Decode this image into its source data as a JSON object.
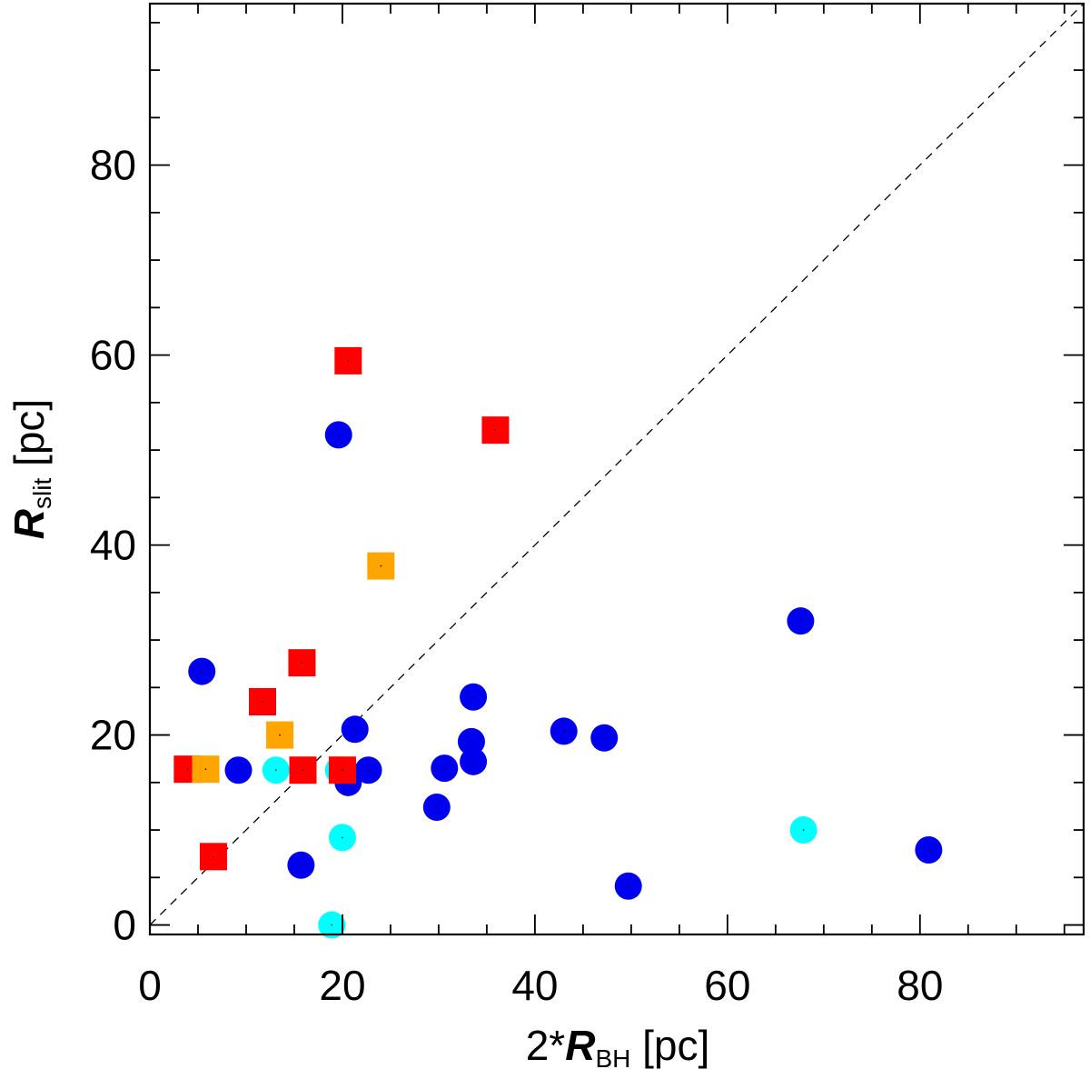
{
  "chart_data": {
    "type": "scatter",
    "title": "",
    "xlabel": {
      "prefix": "2*",
      "symbol": "R",
      "subscript": "BH",
      "suffix": " [pc]"
    },
    "ylabel": {
      "prefix": "",
      "symbol": "R",
      "subscript": "slit",
      "suffix": " [pc]"
    },
    "xlim": [
      0,
      97
    ],
    "ylim": [
      -1,
      97
    ],
    "x_ticks": [
      "0",
      "20",
      "40",
      "60",
      "80"
    ],
    "y_ticks": [
      "0",
      "20",
      "40",
      "60",
      "80"
    ],
    "grid": false,
    "reference_line": "dashed 1:1",
    "colors": {
      "blue": "#0000ee",
      "cyan": "#00ffff",
      "red": "#ff0000",
      "orange": "#ffa500"
    },
    "series": [
      {
        "marker": "circle",
        "color": "#0000ee",
        "points": [
          [
            5.4,
            26.7
          ],
          [
            9.2,
            16.3
          ],
          [
            15.7,
            6.3
          ],
          [
            19.6,
            51.6
          ],
          [
            20.6,
            15.0
          ],
          [
            21.3,
            20.6
          ],
          [
            22.7,
            16.3
          ],
          [
            29.8,
            12.4
          ],
          [
            30.6,
            16.5
          ],
          [
            33.4,
            19.3
          ],
          [
            33.6,
            24.0
          ],
          [
            33.6,
            17.2
          ],
          [
            43.0,
            20.4
          ],
          [
            47.2,
            19.7
          ],
          [
            49.7,
            4.1
          ],
          [
            67.6,
            32.0
          ],
          [
            80.9,
            7.9
          ]
        ]
      },
      {
        "marker": "circle",
        "color": "#00ffff",
        "points": [
          [
            13.1,
            16.3
          ],
          [
            18.9,
            0.0
          ],
          [
            19.6,
            16.3
          ],
          [
            20.0,
            9.2
          ],
          [
            67.9,
            10.0
          ]
        ]
      },
      {
        "marker": "square",
        "color": "#ff0000",
        "points": [
          [
            3.9,
            16.4
          ],
          [
            6.6,
            7.2
          ],
          [
            11.7,
            23.5
          ],
          [
            15.8,
            27.6
          ],
          [
            15.9,
            16.3
          ],
          [
            20.0,
            16.3
          ],
          [
            20.6,
            59.4
          ],
          [
            35.9,
            52.1
          ]
        ]
      },
      {
        "marker": "square",
        "color": "#ffa500",
        "points": [
          [
            5.8,
            16.4
          ],
          [
            13.5,
            20.0
          ],
          [
            24.0,
            37.8
          ]
        ]
      }
    ]
  }
}
